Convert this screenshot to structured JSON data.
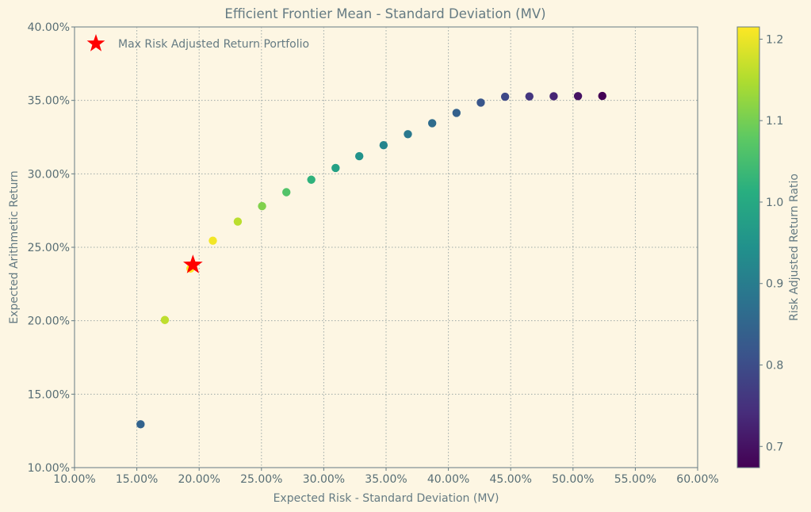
{
  "chart_data": {
    "type": "scatter",
    "title": "Efficient Frontier Mean - Standard Deviation (MV)",
    "xlabel": "Expected Risk - Standard Deviation (MV)",
    "ylabel": "Expected Arithmetic Return",
    "xlim": [
      0.1,
      0.6
    ],
    "ylim": [
      0.1,
      0.4
    ],
    "x_ticks": [
      0.1,
      0.15,
      0.2,
      0.25,
      0.3,
      0.35,
      0.4,
      0.45,
      0.5,
      0.55,
      0.6
    ],
    "y_ticks": [
      0.1,
      0.15,
      0.2,
      0.25,
      0.3,
      0.35,
      0.4
    ],
    "x_tick_labels": [
      "10.00%",
      "15.00%",
      "20.00%",
      "25.00%",
      "30.00%",
      "35.00%",
      "40.00%",
      "45.00%",
      "50.00%",
      "55.00%",
      "60.00%"
    ],
    "y_tick_labels": [
      "10.00%",
      "15.00%",
      "20.00%",
      "25.00%",
      "30.00%",
      "35.00%",
      "40.00%"
    ],
    "grid": true,
    "points": [
      {
        "x": 0.153,
        "y": 0.1295,
        "ratio": 0.846
      },
      {
        "x": 0.1725,
        "y": 0.2005,
        "ratio": 1.162
      },
      {
        "x": 0.193,
        "y": 0.2355,
        "ratio": 1.215
      },
      {
        "x": 0.211,
        "y": 0.2545,
        "ratio": 1.206
      },
      {
        "x": 0.231,
        "y": 0.2675,
        "ratio": 1.158
      },
      {
        "x": 0.2505,
        "y": 0.278,
        "ratio": 1.11
      },
      {
        "x": 0.27,
        "y": 0.2875,
        "ratio": 1.065
      },
      {
        "x": 0.29,
        "y": 0.296,
        "ratio": 1.021
      },
      {
        "x": 0.3095,
        "y": 0.304,
        "ratio": 0.982
      },
      {
        "x": 0.3285,
        "y": 0.312,
        "ratio": 0.95
      },
      {
        "x": 0.348,
        "y": 0.3195,
        "ratio": 0.918
      },
      {
        "x": 0.3675,
        "y": 0.327,
        "ratio": 0.89
      },
      {
        "x": 0.387,
        "y": 0.3345,
        "ratio": 0.864
      },
      {
        "x": 0.4065,
        "y": 0.3415,
        "ratio": 0.84
      },
      {
        "x": 0.426,
        "y": 0.3485,
        "ratio": 0.818
      },
      {
        "x": 0.4455,
        "y": 0.3525,
        "ratio": 0.791
      },
      {
        "x": 0.465,
        "y": 0.3527,
        "ratio": 0.758
      },
      {
        "x": 0.4845,
        "y": 0.3528,
        "ratio": 0.728
      },
      {
        "x": 0.504,
        "y": 0.3529,
        "ratio": 0.7
      },
      {
        "x": 0.5235,
        "y": 0.353,
        "ratio": 0.674
      }
    ],
    "highlight": {
      "label": "Max Risk Adjusted Return Portfolio",
      "x": 0.195,
      "y": 0.238,
      "color": "#ff0000",
      "marker": "star"
    },
    "legend": {
      "placement": "top-left",
      "entries": [
        "Max Risk Adjusted Return Portfolio"
      ]
    },
    "colorbar": {
      "label": "Risk Adjusted Return Ratio",
      "colormap": "viridis",
      "range": [
        0.674,
        1.215
      ],
      "ticks": [
        0.7,
        0.8,
        0.9,
        1.0,
        1.1,
        1.2
      ],
      "tick_labels": [
        "0.7",
        "0.8",
        "0.9",
        "1.0",
        "1.1",
        "1.2"
      ]
    },
    "colors": {
      "background": "#fdf6e3",
      "axis": "#657b83",
      "text": "#586e75"
    }
  }
}
